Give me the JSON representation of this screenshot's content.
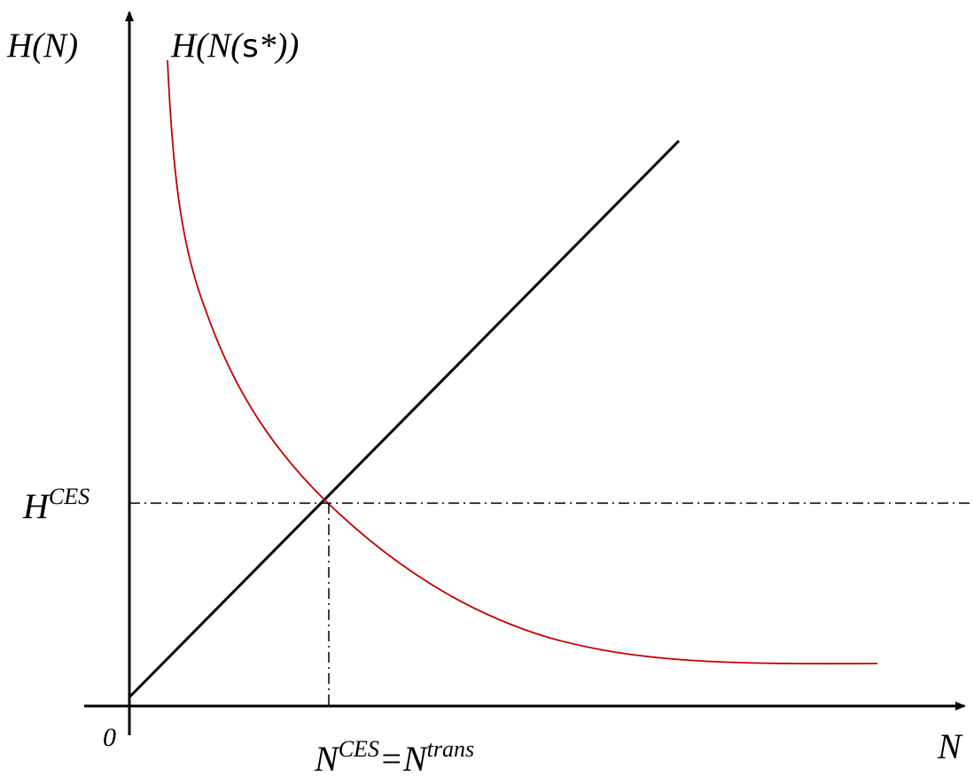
{
  "diagram": {
    "y_axis_label": "H(N)",
    "x_axis_label": "N",
    "origin_label": "0",
    "curve_label": {
      "prefix": "H(N(",
      "sigma": "s",
      "suffix": "*))"
    },
    "h_level_label": {
      "base": "H",
      "sup": "CES"
    },
    "n_level_label": {
      "base1": "N",
      "sup1": "CES",
      "equals": "=",
      "base2": "N",
      "sup2": "trans"
    },
    "colors": {
      "axes": "#000000",
      "line": "#000000",
      "curve": "#c00000",
      "guides": "#000000"
    }
  }
}
